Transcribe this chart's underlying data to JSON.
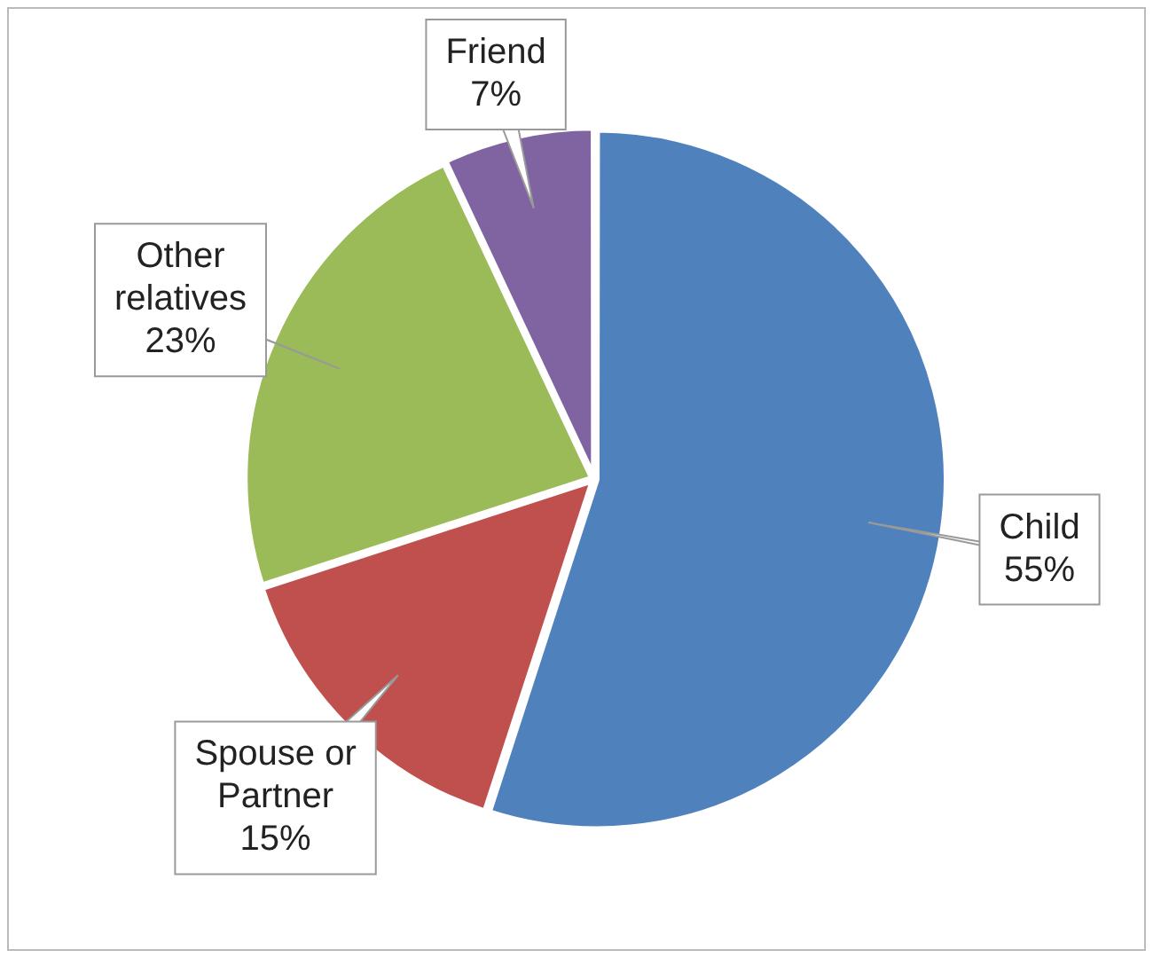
{
  "chart_data": {
    "type": "pie",
    "categories": [
      "Child",
      "Spouse or Partner",
      "Other relatives",
      "Friend"
    ],
    "values": [
      55,
      15,
      23,
      7
    ],
    "colors": [
      "#4f81bd",
      "#c0504d",
      "#9bbb59",
      "#8064a2"
    ],
    "value_labels": [
      "55%",
      "15%",
      "23%",
      "7%"
    ],
    "legend": false
  }
}
